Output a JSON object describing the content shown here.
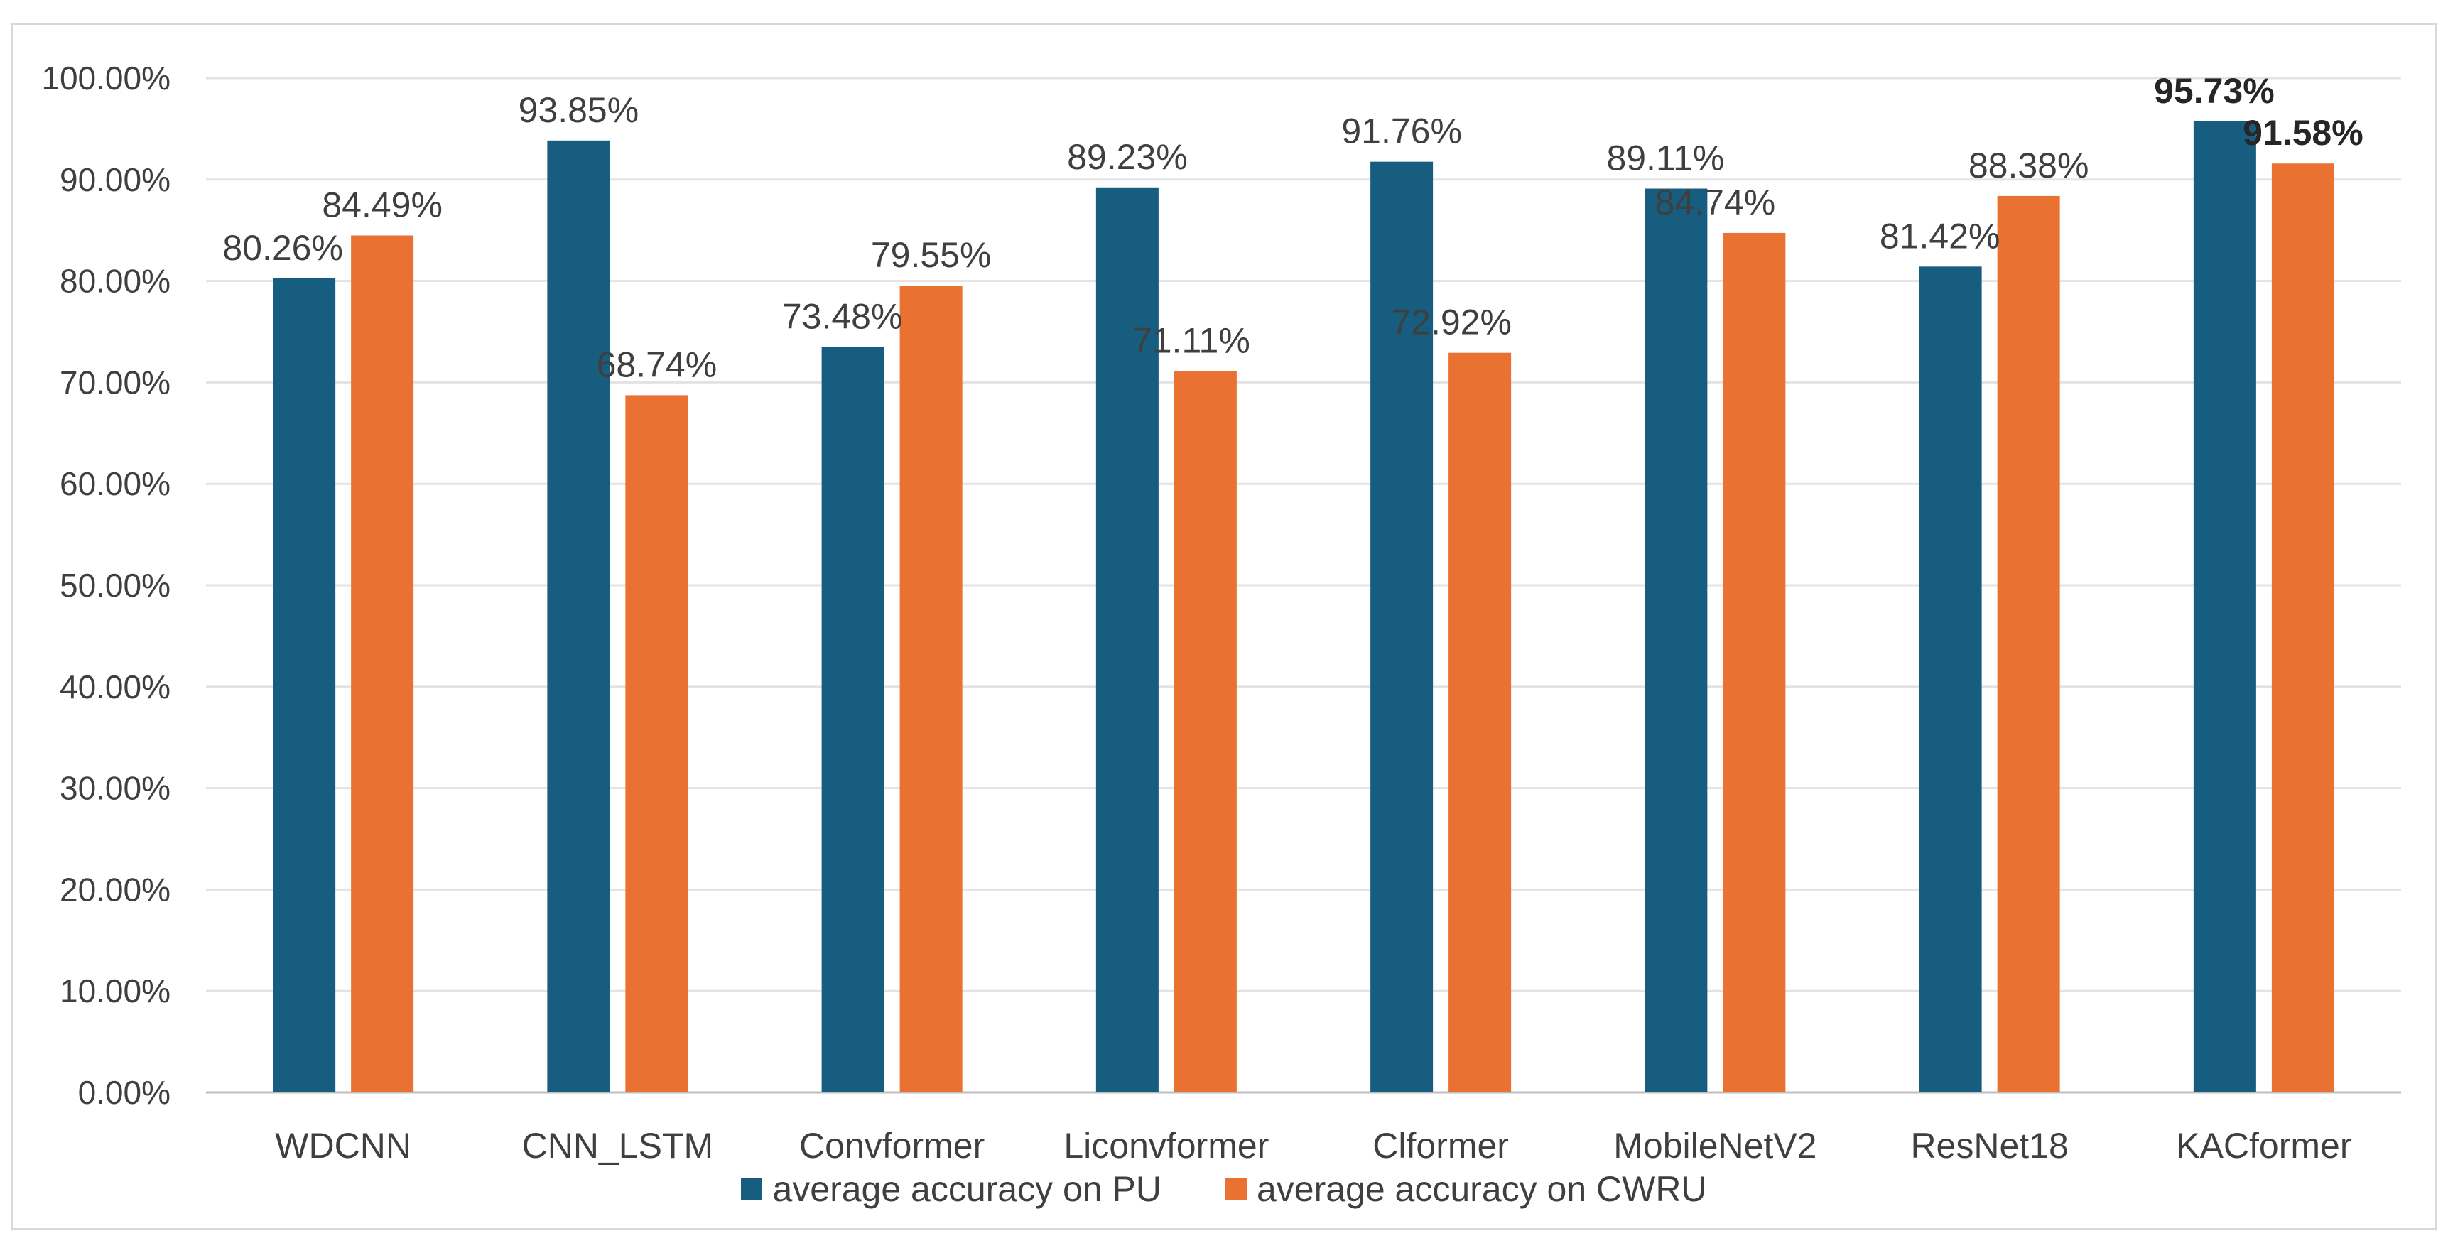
{
  "chart_data": {
    "type": "bar",
    "title": "",
    "xlabel": "",
    "ylabel": "",
    "ylim": [
      0,
      100
    ],
    "yticks": [
      "0.00%",
      "10.00%",
      "20.00%",
      "30.00%",
      "40.00%",
      "50.00%",
      "60.00%",
      "70.00%",
      "80.00%",
      "90.00%",
      "100.00%"
    ],
    "grid": true,
    "legend_position": "bottom",
    "categories": [
      "WDCNN",
      "CNN_LSTM",
      "Convformer",
      "Liconvformer",
      "Clformer",
      "MobileNetV2",
      "ResNet18",
      "KACformer"
    ],
    "series": [
      {
        "name": "average accuracy on PU",
        "color": "#175d7f",
        "values": [
          80.26,
          93.85,
          73.48,
          89.23,
          91.76,
          89.11,
          81.42,
          95.73
        ],
        "labels": [
          "80.26%",
          "93.85%",
          "73.48%",
          "89.23%",
          "91.76%",
          "89.11%",
          "81.42%",
          "95.73%"
        ]
      },
      {
        "name": "average accuracy on CWRU",
        "color": "#e97132",
        "values": [
          84.49,
          68.74,
          79.55,
          71.11,
          72.92,
          84.74,
          88.38,
          91.58
        ],
        "labels": [
          "84.49%",
          "68.74%",
          "79.55%",
          "71.11%",
          "72.92%",
          "84.74%",
          "88.38%",
          "91.58%"
        ]
      }
    ],
    "bold_category": "KACformer"
  }
}
